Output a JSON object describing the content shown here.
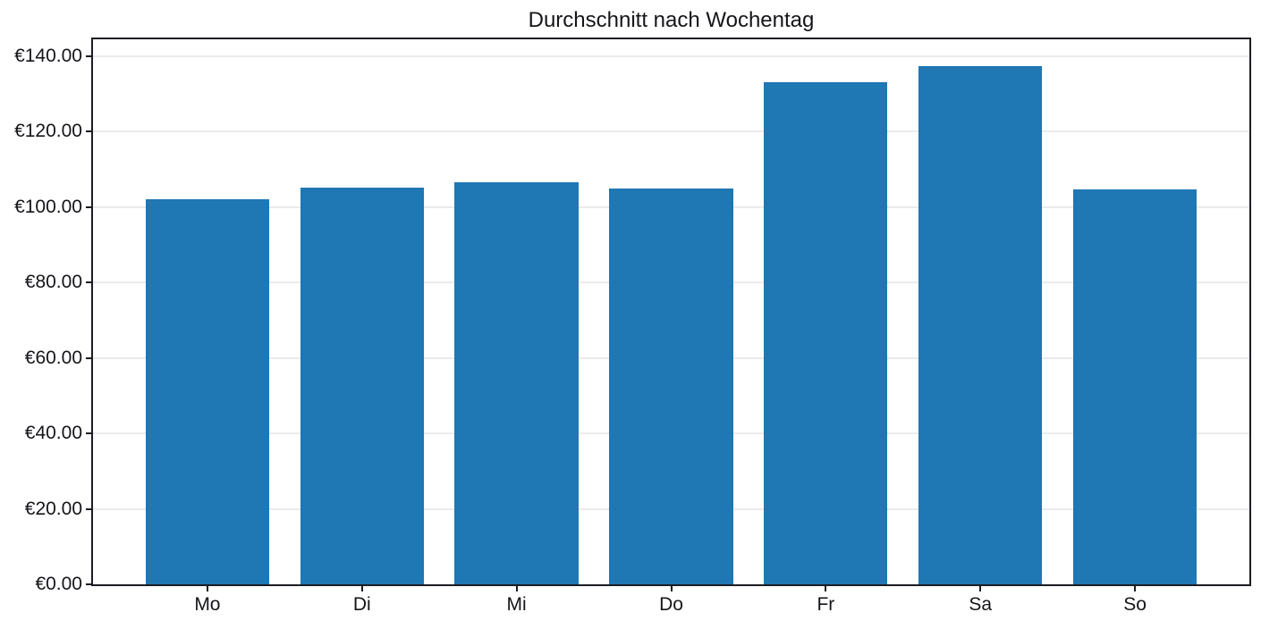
{
  "chart_data": {
    "type": "bar",
    "title": "Durchschnitt nach Wochentag",
    "categories": [
      "Mo",
      "Di",
      "Mi",
      "Do",
      "Fr",
      "Sa",
      "So"
    ],
    "values": [
      102.0,
      105.2,
      106.6,
      104.9,
      133.2,
      137.4,
      104.6
    ],
    "yticks": {
      "values": [
        0,
        20,
        40,
        60,
        80,
        100,
        120,
        140
      ],
      "labels": [
        "€0.00",
        "€20.00",
        "€40.00",
        "€60.00",
        "€80.00",
        "€100.00",
        "€120.00",
        "€140.00"
      ]
    },
    "ylim": [
      0,
      144.5
    ],
    "xlabel": "",
    "ylabel": "",
    "grid": true,
    "legend": null,
    "bar_color": "#1f77b4",
    "background_color": "#ffffff"
  }
}
